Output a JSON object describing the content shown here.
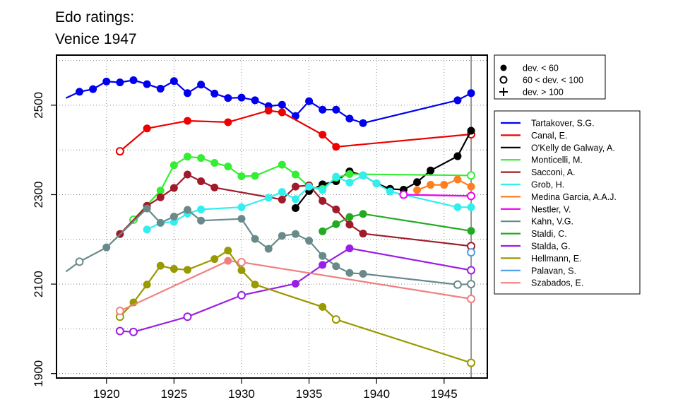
{
  "chart_data": {
    "type": "line",
    "title_lines": [
      "Edo ratings:",
      "Venice 1947"
    ],
    "xlabel": "",
    "ylabel": "",
    "xlim": [
      1916.3,
      1948.2
    ],
    "ylim": [
      1890,
      2612
    ],
    "x_ticks": [
      1920,
      1925,
      1930,
      1935,
      1940,
      1945
    ],
    "y_ticks": [
      1900,
      2100,
      2300,
      2500
    ],
    "y_minor_grid": [
      2000,
      2200,
      2400,
      2600
    ],
    "grid": "dotted",
    "reference_line_x": 1947,
    "marker_legend": {
      "position": "top-right",
      "items": [
        {
          "marker": "filled",
          "label": "dev. < 60"
        },
        {
          "marker": "open",
          "label": "60 < dev. < 100"
        },
        {
          "marker": "plus",
          "label": "dev. > 100"
        }
      ]
    },
    "legend_position": "right",
    "series": [
      {
        "name": "Tartakover, S.G.",
        "color": "#0000ee",
        "points": [
          [
            1917,
            2516
          ],
          [
            1918,
            2530
          ],
          [
            1919,
            2536
          ],
          [
            1920,
            2553
          ],
          [
            1921,
            2551
          ],
          [
            1922,
            2556
          ],
          [
            1923,
            2547
          ],
          [
            1924,
            2537
          ],
          [
            1925,
            2554
          ],
          [
            1926,
            2527
          ],
          [
            1927,
            2546
          ],
          [
            1928,
            2526
          ],
          [
            1929,
            2516
          ],
          [
            1930,
            2517
          ],
          [
            1931,
            2511
          ],
          [
            1932,
            2498
          ],
          [
            1933,
            2501
          ],
          [
            1934,
            2476
          ],
          [
            1935,
            2509
          ],
          [
            1936,
            2490
          ],
          [
            1937,
            2490
          ],
          [
            1938,
            2470
          ],
          [
            1939,
            2460
          ],
          [
            1946,
            2511
          ],
          [
            1947,
            2527
          ]
        ],
        "marker": [
          "n",
          "f",
          "f",
          "f",
          "f",
          "f",
          "f",
          "f",
          "f",
          "f",
          "f",
          "f",
          "f",
          "f",
          "f",
          "f",
          "f",
          "f",
          "f",
          "f",
          "f",
          "f",
          "f",
          "f",
          "f"
        ]
      },
      {
        "name": "Canal, E.",
        "color": "#ee0000",
        "points": [
          [
            1921,
            2397
          ],
          [
            1923,
            2448
          ],
          [
            1926,
            2465
          ],
          [
            1929,
            2462
          ],
          [
            1932,
            2488
          ],
          [
            1933,
            2484
          ],
          [
            1936,
            2434
          ],
          [
            1937,
            2407
          ],
          [
            1947,
            2435
          ]
        ],
        "marker": [
          "o",
          "f",
          "f",
          "f",
          "f",
          "f",
          "f",
          "f",
          "o"
        ]
      },
      {
        "name": "O'Kelly de Galway, A.",
        "color": "#000000",
        "points": [
          [
            1934,
            2270
          ],
          [
            1935,
            2308
          ],
          [
            1936,
            2323
          ],
          [
            1937,
            2330
          ],
          [
            1938,
            2352
          ],
          [
            1939,
            2343
          ],
          [
            1940,
            2325
          ],
          [
            1941,
            2313
          ],
          [
            1942,
            2311
          ],
          [
            1943,
            2328
          ],
          [
            1944,
            2354
          ],
          [
            1946,
            2386
          ],
          [
            1947,
            2443
          ]
        ],
        "marker": [
          "f",
          "f",
          "f",
          "f",
          "f",
          "f",
          "f",
          "f",
          "f",
          "f",
          "f",
          "f",
          "f"
        ]
      },
      {
        "name": "Monticelli, M.",
        "color": "#33ee33",
        "points": [
          [
            1922,
            2244
          ],
          [
            1924,
            2309
          ],
          [
            1925,
            2366
          ],
          [
            1926,
            2385
          ],
          [
            1927,
            2382
          ],
          [
            1928,
            2371
          ],
          [
            1929,
            2363
          ],
          [
            1930,
            2341
          ],
          [
            1931,
            2342
          ],
          [
            1933,
            2367
          ],
          [
            1934,
            2345
          ],
          [
            1935,
            2318
          ],
          [
            1936,
            2313
          ],
          [
            1937,
            2338
          ],
          [
            1938,
            2346
          ],
          [
            1947,
            2343
          ]
        ],
        "marker": [
          "o",
          "f",
          "f",
          "f",
          "f",
          "f",
          "f",
          "f",
          "f",
          "f",
          "f",
          "f",
          "f",
          "f",
          "f",
          "o"
        ]
      },
      {
        "name": "Sacconi, A.",
        "color": "#a01a2a",
        "points": [
          [
            1921,
            2212
          ],
          [
            1923,
            2275
          ],
          [
            1924,
            2294
          ],
          [
            1925,
            2315
          ],
          [
            1926,
            2345
          ],
          [
            1927,
            2330
          ],
          [
            1928,
            2316
          ],
          [
            1933,
            2289
          ],
          [
            1934,
            2318
          ],
          [
            1935,
            2321
          ],
          [
            1936,
            2286
          ],
          [
            1937,
            2267
          ],
          [
            1938,
            2233
          ],
          [
            1939,
            2213
          ],
          [
            1947,
            2185
          ]
        ],
        "marker": [
          "f",
          "f",
          "f",
          "f",
          "f",
          "f",
          "f",
          "f",
          "f",
          "f",
          "f",
          "f",
          "f",
          "f",
          "o"
        ]
      },
      {
        "name": "Grob, H.",
        "color": "#33eeee",
        "points": [
          [
            1923,
            2222
          ],
          [
            1924,
            2237
          ],
          [
            1925,
            2239
          ],
          [
            1926,
            2258
          ],
          [
            1927,
            2267
          ],
          [
            1930,
            2272
          ],
          [
            1932,
            2293
          ],
          [
            1933,
            2306
          ],
          [
            1934,
            2290
          ],
          [
            1935,
            2318
          ],
          [
            1936,
            2310
          ],
          [
            1937,
            2340
          ],
          [
            1938,
            2327
          ],
          [
            1939,
            2343
          ],
          [
            1940,
            2325
          ],
          [
            1941,
            2307
          ],
          [
            1946,
            2272
          ],
          [
            1947,
            2272
          ]
        ],
        "marker": [
          "f",
          "f",
          "f",
          "f",
          "f",
          "f",
          "f",
          "f",
          "f",
          "f",
          "f",
          "f",
          "f",
          "f",
          "f",
          "f",
          "f",
          "f"
        ]
      },
      {
        "name": "Medina Garcia, A.A.J.",
        "color": "#ff7f1e",
        "points": [
          [
            1943,
            2310
          ],
          [
            1944,
            2322
          ],
          [
            1945,
            2322
          ],
          [
            1946,
            2334
          ],
          [
            1947,
            2318
          ]
        ],
        "marker": [
          "f",
          "f",
          "f",
          "f",
          "f"
        ]
      },
      {
        "name": "Nestler, V.",
        "color": "#ee00ee",
        "points": [
          [
            1942,
            2300
          ],
          [
            1947,
            2297
          ]
        ],
        "marker": [
          "o",
          "o"
        ]
      },
      {
        "name": "Kahn, V.G.",
        "color": "#6a8a8a",
        "points": [
          [
            1917,
            2128
          ],
          [
            1918,
            2150
          ],
          [
            1920,
            2182
          ],
          [
            1923,
            2269
          ],
          [
            1924,
            2237
          ],
          [
            1925,
            2251
          ],
          [
            1926,
            2266
          ],
          [
            1927,
            2242
          ],
          [
            1930,
            2246
          ],
          [
            1931,
            2201
          ],
          [
            1932,
            2179
          ],
          [
            1933,
            2208
          ],
          [
            1934,
            2212
          ],
          [
            1935,
            2197
          ],
          [
            1936,
            2163
          ],
          [
            1937,
            2140
          ],
          [
            1938,
            2125
          ],
          [
            1939,
            2123
          ],
          [
            1946,
            2099
          ],
          [
            1947,
            2100
          ]
        ],
        "marker": [
          "n",
          "o",
          "f",
          "f",
          "f",
          "f",
          "f",
          "f",
          "f",
          "f",
          "f",
          "f",
          "f",
          "f",
          "f",
          "f",
          "f",
          "f",
          "o",
          "o"
        ]
      },
      {
        "name": "Staldi, C.",
        "color": "#22aa22",
        "points": [
          [
            1936,
            2218
          ],
          [
            1937,
            2234
          ],
          [
            1938,
            2250
          ],
          [
            1939,
            2257
          ],
          [
            1947,
            2219
          ]
        ],
        "marker": [
          "f",
          "f",
          "f",
          "f",
          "f"
        ]
      },
      {
        "name": "Stalda, G.",
        "color": "#9b1ee6",
        "points": [
          [
            1921,
            1995
          ],
          [
            1922,
            1993
          ],
          [
            1926,
            2027
          ],
          [
            1930,
            2075
          ],
          [
            1934,
            2101
          ],
          [
            1936,
            2143
          ],
          [
            1938,
            2180
          ],
          [
            1947,
            2131
          ]
        ],
        "marker": [
          "o",
          "o",
          "o",
          "o",
          "f",
          "f",
          "f",
          "o"
        ]
      },
      {
        "name": "Hellmann, E.",
        "color": "#999900",
        "points": [
          [
            1921,
            2027
          ],
          [
            1922,
            2059
          ],
          [
            1923,
            2099
          ],
          [
            1924,
            2141
          ],
          [
            1925,
            2134
          ],
          [
            1926,
            2132
          ],
          [
            1928,
            2156
          ],
          [
            1929,
            2175
          ],
          [
            1930,
            2131
          ],
          [
            1931,
            2099
          ],
          [
            1936,
            2049
          ],
          [
            1937,
            2021
          ],
          [
            1947,
            1924
          ]
        ],
        "marker": [
          "o",
          "f",
          "f",
          "f",
          "f",
          "f",
          "f",
          "f",
          "f",
          "f",
          "f",
          "o",
          "o"
        ]
      },
      {
        "name": "Palavan, S.",
        "color": "#4d9ee6",
        "points": [
          [
            1947,
            2171
          ]
        ],
        "marker": [
          "o"
        ]
      },
      {
        "name": "Szabados, E.",
        "color": "#f08080",
        "points": [
          [
            1921,
            2040
          ],
          [
            1929,
            2152
          ],
          [
            1930,
            2149
          ],
          [
            1947,
            2067
          ]
        ],
        "marker": [
          "o",
          "f",
          "o",
          "o"
        ]
      }
    ]
  }
}
